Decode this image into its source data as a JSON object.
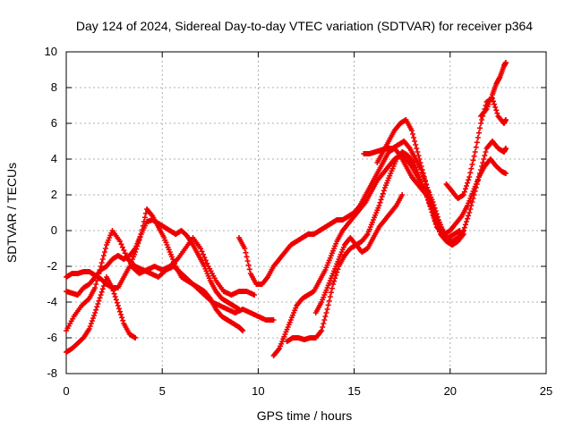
{
  "chart_data": {
    "type": "scatter",
    "title": "Day 124 of 2024, Sidereal Day-to-day VTEC variation (SDTVAR) for receiver p364",
    "xlabel": "GPS time / hours",
    "ylabel": "SDTVAR / TECUs",
    "xlim": [
      0,
      25
    ],
    "ylim": [
      -8,
      10
    ],
    "xticks": [
      "0",
      "5",
      "10",
      "15",
      "20",
      "25"
    ],
    "yticks": [
      "-8",
      "-6",
      "-4",
      "-2",
      "0",
      "2",
      "4",
      "6",
      "8",
      "10"
    ],
    "grid": true,
    "marker": "plus",
    "color": "#ee0000",
    "series": [
      {
        "x": [
          0.0,
          0.3,
          0.6,
          0.9,
          1.2,
          1.5,
          1.8,
          2.1,
          2.4,
          2.7,
          3.0,
          3.3,
          3.6
        ],
        "y": [
          -6.8,
          -6.6,
          -6.3,
          -6.0,
          -5.5,
          -4.6,
          -3.6,
          -2.6,
          -3.2,
          -4.2,
          -5.2,
          -5.8,
          -6.0
        ]
      },
      {
        "x": [
          0.0,
          0.4,
          0.8,
          1.2,
          1.5,
          1.8,
          2.1,
          2.4,
          2.8,
          3.2,
          3.6,
          4.0,
          4.4,
          4.8,
          5.2,
          5.6,
          6.0,
          6.4,
          6.8,
          7.2,
          7.6,
          8.0,
          8.4,
          8.8,
          9.2,
          9.6,
          10.0,
          10.4,
          10.8
        ],
        "y": [
          -5.6,
          -4.8,
          -4.2,
          -3.8,
          -3.2,
          -2.0,
          -0.8,
          0.0,
          -0.6,
          -1.6,
          -2.0,
          -2.2,
          -2.4,
          -2.6,
          -2.2,
          -2.0,
          -2.4,
          -2.8,
          -3.2,
          -3.6,
          -4.0,
          -4.2,
          -4.4,
          -4.6,
          -4.4,
          -4.6,
          -4.8,
          -5.0,
          -5.0
        ]
      },
      {
        "x": [
          0.0,
          0.3,
          0.6,
          0.9,
          1.2,
          1.5,
          1.8,
          2.1,
          2.4,
          2.7,
          3.0,
          3.3,
          3.6,
          3.9,
          4.2,
          4.5,
          4.8,
          5.1,
          5.4,
          5.7,
          6.0,
          6.3,
          6.6,
          6.9,
          7.2,
          7.5,
          7.8,
          8.1,
          8.4,
          8.7,
          9.0
        ],
        "y": [
          -3.4,
          -3.5,
          -3.6,
          -3.2,
          -3.0,
          -2.6,
          -2.2,
          -2.0,
          -1.6,
          -1.4,
          -1.6,
          -1.4,
          -1.0,
          -0.2,
          0.5,
          0.6,
          0.4,
          0.2,
          0.0,
          -0.2,
          0.0,
          -0.3,
          -0.8,
          -1.4,
          -2.0,
          -2.8,
          -3.4,
          -3.8,
          -4.0,
          -4.2,
          -4.4
        ]
      },
      {
        "x": [
          0.0,
          0.3,
          0.6,
          0.9,
          1.2,
          1.5,
          1.8,
          2.1,
          2.4,
          2.7,
          3.0,
          3.3,
          3.6,
          3.9,
          4.2,
          4.5,
          4.8,
          5.1,
          5.4,
          5.7,
          6.0,
          6.3,
          6.6,
          6.9,
          7.2,
          7.5,
          7.8,
          8.1,
          8.4,
          8.7,
          9.0,
          9.2
        ],
        "y": [
          -2.6,
          -2.4,
          -2.4,
          -2.3,
          -2.3,
          -2.5,
          -2.7,
          -3.0,
          -3.2,
          -3.2,
          -2.6,
          -2.0,
          -1.2,
          -0.2,
          1.2,
          0.8,
          0.2,
          -0.4,
          -1.2,
          -2.0,
          -2.6,
          -2.8,
          -3.0,
          -3.2,
          -3.4,
          -3.8,
          -4.4,
          -4.8,
          -5.0,
          -5.2,
          -5.4,
          -5.6
        ]
      },
      {
        "x": [
          3.4,
          3.8,
          4.2,
          4.6,
          5.0,
          5.4,
          5.8,
          6.2,
          6.6,
          7.0,
          7.4,
          7.8,
          8.2,
          8.6,
          9.0,
          9.4,
          9.8
        ],
        "y": [
          -2.0,
          -2.4,
          -2.2,
          -2.0,
          -2.2,
          -2.0,
          -1.6,
          -1.0,
          -0.4,
          -1.0,
          -2.0,
          -2.8,
          -3.4,
          -3.6,
          -3.4,
          -3.4,
          -3.6
        ]
      },
      {
        "x": [
          9.0,
          9.3,
          9.6,
          9.9,
          10.2,
          10.5,
          10.8,
          11.1,
          11.4,
          11.7,
          12.0,
          12.3,
          12.6,
          12.9,
          13.2,
          13.5,
          13.8,
          14.1,
          14.4,
          14.7,
          15.0,
          15.3,
          15.6,
          15.9,
          16.2,
          16.5,
          16.8,
          17.1,
          17.4,
          17.7,
          18.0,
          18.3,
          18.6,
          18.9,
          19.2,
          19.5,
          19.8,
          20.1,
          20.4,
          20.7
        ],
        "y": [
          -0.4,
          -1.0,
          -2.4,
          -3.0,
          -3.0,
          -2.6,
          -2.0,
          -1.6,
          -1.2,
          -0.8,
          -0.6,
          -0.4,
          -0.2,
          -0.2,
          0.0,
          0.2,
          0.4,
          0.6,
          0.6,
          0.8,
          1.0,
          1.4,
          2.0,
          2.6,
          3.2,
          3.8,
          4.4,
          4.6,
          4.2,
          3.6,
          3.0,
          2.6,
          2.2,
          1.8,
          0.6,
          -0.2,
          -0.6,
          -0.8,
          -0.6,
          -0.2
        ]
      },
      {
        "x": [
          10.8,
          11.1,
          11.4,
          11.7,
          12.0,
          12.3,
          12.6,
          12.9,
          13.2,
          13.5,
          13.8,
          14.1,
          14.4,
          14.7,
          15.0,
          15.3,
          15.6,
          15.9,
          16.2,
          16.5,
          16.8,
          17.1,
          17.4,
          17.7,
          18.0,
          18.3,
          18.6,
          18.9,
          19.2,
          19.5,
          19.8,
          20.1,
          20.4,
          20.7
        ],
        "y": [
          -7.0,
          -6.6,
          -5.8,
          -5.0,
          -4.2,
          -3.8,
          -3.6,
          -3.4,
          -2.8,
          -2.2,
          -1.4,
          -0.6,
          0.0,
          0.4,
          0.8,
          1.2,
          1.6,
          2.2,
          2.8,
          3.2,
          3.6,
          4.0,
          4.2,
          4.0,
          3.6,
          3.0,
          2.4,
          1.6,
          0.8,
          0.0,
          -0.4,
          -0.6,
          -0.4,
          0.0
        ]
      },
      {
        "x": [
          11.5,
          11.8,
          12.1,
          12.4,
          12.7,
          13.0,
          13.3,
          13.6,
          13.9,
          14.2,
          14.5,
          14.8,
          15.1,
          15.4,
          15.7,
          16.0,
          16.3,
          16.6,
          16.9,
          17.2,
          17.5,
          17.8,
          18.1,
          18.4,
          18.7,
          19.0,
          19.3,
          19.6,
          19.9,
          20.2,
          20.5
        ],
        "y": [
          -6.2,
          -6.0,
          -6.0,
          -6.1,
          -6.0,
          -6.0,
          -5.6,
          -4.4,
          -3.0,
          -2.0,
          -1.4,
          -1.0,
          -0.8,
          -0.6,
          -0.2,
          0.6,
          1.4,
          2.4,
          3.2,
          4.0,
          4.4,
          4.2,
          3.8,
          3.0,
          2.2,
          1.2,
          0.2,
          -0.2,
          -0.4,
          -0.2,
          0.0
        ]
      },
      {
        "x": [
          13.0,
          13.3,
          13.6,
          13.9,
          14.2,
          14.5,
          14.8,
          15.1,
          15.4,
          15.7,
          16.0,
          16.3,
          16.6,
          16.9,
          17.2,
          17.5
        ],
        "y": [
          -4.6,
          -4.0,
          -3.2,
          -2.4,
          -1.6,
          -0.8,
          -0.4,
          -0.8,
          -1.2,
          -1.0,
          -0.4,
          0.2,
          0.6,
          1.0,
          1.4,
          2.0
        ]
      },
      {
        "x": [
          15.5,
          15.8,
          16.1,
          16.4,
          16.7,
          17.0,
          17.3,
          17.6,
          17.9,
          18.2,
          18.5,
          18.8,
          19.1,
          19.4,
          19.7,
          20.0,
          20.3,
          20.6,
          20.9,
          21.2,
          21.5,
          21.8,
          22.1,
          22.4,
          22.7,
          22.9
        ],
        "y": [
          4.3,
          4.3,
          4.4,
          4.5,
          4.6,
          4.6,
          4.8,
          5.0,
          4.6,
          4.0,
          3.4,
          2.4,
          1.6,
          0.6,
          -0.2,
          0.0,
          0.4,
          0.8,
          1.4,
          2.2,
          3.0,
          3.6,
          4.0,
          3.6,
          3.3,
          3.2
        ]
      },
      {
        "x": [
          16.2,
          16.5,
          16.8,
          17.1,
          17.4,
          17.7,
          18.0,
          18.3,
          18.6,
          18.9,
          19.2,
          19.5,
          19.8,
          20.1,
          20.4,
          20.7,
          21.0,
          21.3,
          21.6,
          21.9,
          22.2,
          22.5,
          22.8,
          22.9
        ],
        "y": [
          3.8,
          4.4,
          5.0,
          5.6,
          6.0,
          6.2,
          5.6,
          4.4,
          3.2,
          2.0,
          1.0,
          0.2,
          -0.4,
          -0.8,
          -0.6,
          0.0,
          1.0,
          2.2,
          3.4,
          4.6,
          5.0,
          4.6,
          4.4,
          4.6
        ]
      },
      {
        "x": [
          19.8,
          20.1,
          20.4,
          20.7,
          21.0,
          21.3,
          21.6,
          21.9,
          22.2,
          22.5,
          22.8,
          22.9
        ],
        "y": [
          2.6,
          2.2,
          1.8,
          2.0,
          3.0,
          4.4,
          6.0,
          7.2,
          7.4,
          6.4,
          6.0,
          6.2
        ]
      },
      {
        "x": [
          21.6,
          21.9,
          22.2,
          22.4,
          22.6,
          22.8,
          22.9
        ],
        "y": [
          6.4,
          6.8,
          7.6,
          8.2,
          8.6,
          9.2,
          9.4
        ]
      }
    ]
  }
}
